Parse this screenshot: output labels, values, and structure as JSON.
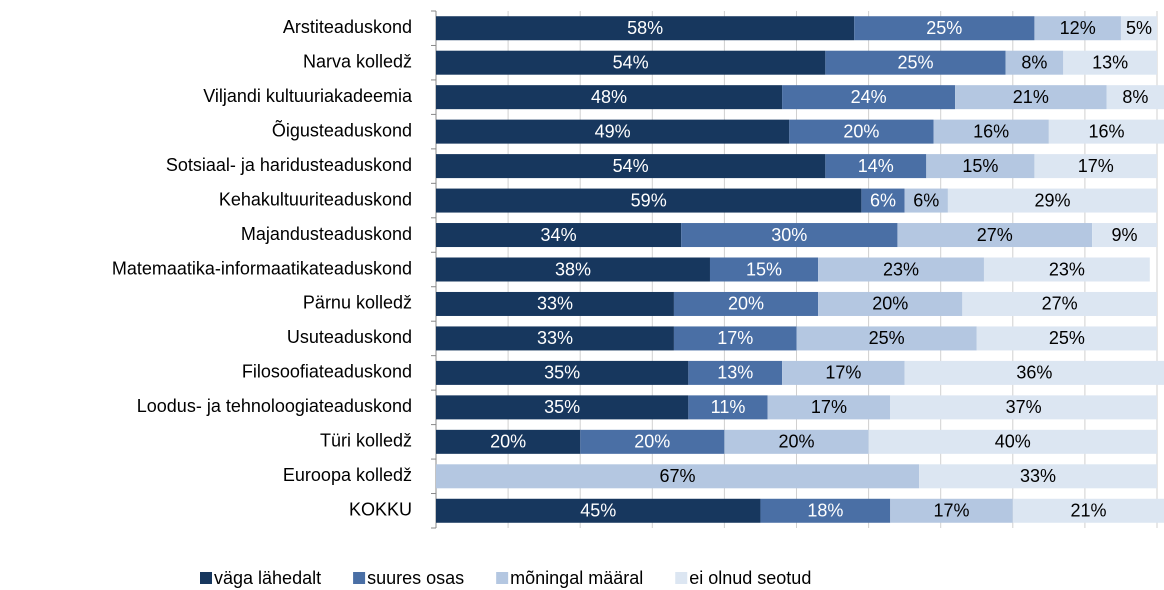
{
  "chart_data": {
    "type": "stacked-bar-horizontal",
    "categories": [
      "Arstiteaduskond",
      "Narva kolledž",
      "Viljandi kultuuriakadeemia",
      "Õigusteaduskond",
      "Sotsiaal- ja haridusteaduskond",
      "Kehakultuuriteaduskond",
      "Majandusteaduskond",
      "Matemaatika-informaatikateaduskond",
      "Pärnu kolledž",
      "Usuteaduskond",
      "Filosoofiateaduskond",
      "Loodus- ja tehnoloogiateaduskond",
      "Türi kolledž",
      "Euroopa kolledž",
      "KOKKU"
    ],
    "series": [
      {
        "name": "väga lähedalt",
        "color": "#17375e",
        "label_color": "#ffffff",
        "values": [
          58,
          54,
          48,
          49,
          54,
          59,
          34,
          38,
          33,
          33,
          35,
          35,
          20,
          null,
          45
        ]
      },
      {
        "name": "suures osas",
        "color": "#4a6fa5",
        "label_color": "#ffffff",
        "values": [
          25,
          25,
          24,
          20,
          14,
          6,
          30,
          15,
          20,
          17,
          13,
          11,
          20,
          null,
          18
        ]
      },
      {
        "name": "mõningal määral",
        "color": "#b4c7e1",
        "label_color": "#000000",
        "values": [
          12,
          8,
          21,
          16,
          15,
          6,
          27,
          23,
          20,
          25,
          17,
          17,
          20,
          67,
          17
        ]
      },
      {
        "name": "ei olnud seotud",
        "color": "#dce6f2",
        "label_color": "#000000",
        "values": [
          5,
          13,
          8,
          16,
          17,
          29,
          9,
          23,
          27,
          25,
          36,
          37,
          40,
          33,
          21
        ]
      }
    ],
    "value_labels": [
      [
        "58%",
        "54%",
        "48%",
        "49%",
        "54%",
        "59%",
        "34%",
        "38%",
        "33%",
        "33%",
        "35%",
        "35%",
        "20%",
        null,
        "45%"
      ],
      [
        "25%",
        "25%",
        "24%",
        "20%",
        "14%",
        "6%",
        "30%",
        "15%",
        "20%",
        "17%",
        "13%",
        "11%",
        "20%",
        null,
        "18%"
      ],
      [
        "12%",
        "8%",
        "21%",
        "16%",
        "15%",
        "6%",
        "27%",
        "23%",
        "20%",
        "25%",
        "17%",
        "17%",
        "20%",
        "67%",
        "17%"
      ],
      [
        "5%",
        "13%",
        "8%",
        "16%",
        "17%",
        "29%",
        "9%",
        "23%",
        "27%",
        "25%",
        "36%",
        "37%",
        "40%",
        "33%",
        "21%"
      ]
    ],
    "xlim": [
      0,
      100
    ],
    "xticks": [
      0,
      10,
      20,
      30,
      40,
      50,
      60,
      70,
      80,
      90,
      100
    ],
    "grid": true,
    "legend": "bottom"
  }
}
